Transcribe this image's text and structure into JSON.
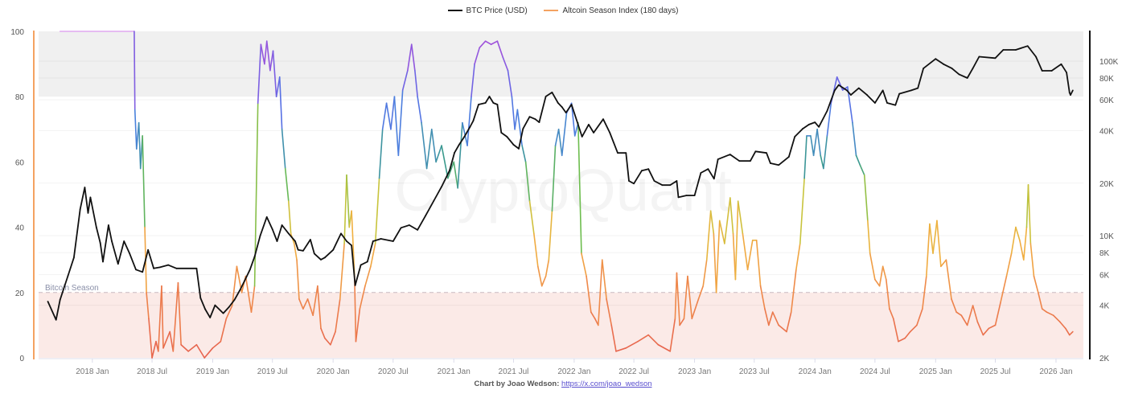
{
  "legend": {
    "btc_label": "BTC Price (USD)",
    "alt_label": "Altcoin Season Index (180 days)",
    "btc_color": "#111111",
    "alt_color": "#f4a261"
  },
  "footer": {
    "credit": "Chart by Joao Wedson:",
    "link": "https://x.com/joao_wedson"
  },
  "watermark": "CryptoQuant",
  "chart_data": {
    "type": "line",
    "xlim": [
      "2017-07-22",
      "2026-03-25"
    ],
    "x_ticks": [
      "2018 Jan",
      "2018 Jul",
      "2019 Jan",
      "2019 Jul",
      "2020 Jan",
      "2020 Jul",
      "2021 Jan",
      "2021 Jul",
      "2022 Jan",
      "2022 Jul",
      "2023 Jan",
      "2023 Jul",
      "2024 Jan",
      "2024 Jul",
      "2025 Jan",
      "2025 Jul",
      "2026 Jan"
    ],
    "x_tick_dates": [
      "2018-01-01",
      "2018-07-01",
      "2019-01-01",
      "2019-07-01",
      "2020-01-01",
      "2020-07-01",
      "2021-01-01",
      "2021-07-01",
      "2022-01-01",
      "2022-07-01",
      "2023-01-01",
      "2023-07-01",
      "2024-01-01",
      "2024-07-01",
      "2025-01-01",
      "2025-07-01",
      "2026-01-01"
    ],
    "y_left": {
      "ylim": [
        0,
        100
      ],
      "ticks": [
        0,
        20,
        40,
        60,
        80,
        100
      ],
      "color": "#f4a261"
    },
    "y_right": {
      "scale": "log",
      "ylim": [
        2000,
        148000
      ],
      "ticks": [
        2000,
        4000,
        6000,
        8000,
        10000,
        20000,
        40000,
        60000,
        80000,
        100000
      ],
      "tick_labels": [
        "2K",
        "4K",
        "6K",
        "8K",
        "10K",
        "20K",
        "40K",
        "60K",
        "80K",
        "100K"
      ],
      "color": "#111111"
    },
    "grid": true,
    "legend_position": "top",
    "bands": [
      {
        "from": 80,
        "to": 100,
        "color": "#f0f0f0"
      },
      {
        "from": 0,
        "to": 20,
        "color": "#fbeae7",
        "label": "Bitcoin Season",
        "line_at": 20
      }
    ],
    "alt_color_scale": [
      {
        "v": 0,
        "color": "#e6604f"
      },
      {
        "v": 20,
        "color": "#ef8a4a"
      },
      {
        "v": 35,
        "color": "#f0b040"
      },
      {
        "v": 45,
        "color": "#c8c43c"
      },
      {
        "v": 52,
        "color": "#6dbd4e"
      },
      {
        "v": 60,
        "color": "#3a9a8c"
      },
      {
        "v": 70,
        "color": "#4a82dc"
      },
      {
        "v": 80,
        "color": "#5a6ce6"
      },
      {
        "v": 90,
        "color": "#8a5ae0"
      },
      {
        "v": 99,
        "color": "#a84ed8"
      },
      {
        "v": 100,
        "color": "#e0a8f0"
      }
    ],
    "series": [
      {
        "name": "Altcoin Season Index (180 days)",
        "axis": "left",
        "dates": [
          "2017-09-25",
          "2018-05-08",
          "2018-05-10",
          "2018-05-15",
          "2018-05-22",
          "2018-05-27",
          "2018-06-02",
          "2018-06-09",
          "2018-06-14",
          "2018-06-21",
          "2018-07-01",
          "2018-07-13",
          "2018-07-20",
          "2018-07-30",
          "2018-08-04",
          "2018-08-24",
          "2018-09-03",
          "2018-09-18",
          "2018-09-27",
          "2018-10-19",
          "2018-11-13",
          "2018-12-07",
          "2019-01-01",
          "2019-01-25",
          "2019-02-11",
          "2019-03-01",
          "2019-03-15",
          "2019-03-30",
          "2019-04-11",
          "2019-04-28",
          "2019-05-08",
          "2019-05-18",
          "2019-05-27",
          "2019-06-07",
          "2019-06-14",
          "2019-06-24",
          "2019-07-03",
          "2019-07-13",
          "2019-07-23",
          "2019-07-30",
          "2019-08-09",
          "2019-08-19",
          "2019-08-26",
          "2019-09-05",
          "2019-09-13",
          "2019-09-20",
          "2019-10-02",
          "2019-10-16",
          "2019-11-01",
          "2019-11-15",
          "2019-11-25",
          "2019-12-07",
          "2019-12-24",
          "2020-01-08",
          "2020-01-22",
          "2020-02-04",
          "2020-02-11",
          "2020-02-19",
          "2020-02-26",
          "2020-03-06",
          "2020-03-10",
          "2020-03-22",
          "2020-04-07",
          "2020-04-24",
          "2020-05-08",
          "2020-05-20",
          "2020-05-30",
          "2020-06-11",
          "2020-06-24",
          "2020-07-05",
          "2020-07-17",
          "2020-07-30",
          "2020-08-14",
          "2020-08-26",
          "2020-09-05",
          "2020-09-13",
          "2020-09-25",
          "2020-10-11",
          "2020-10-26",
          "2020-11-08",
          "2020-11-25",
          "2020-12-14",
          "2021-01-01",
          "2021-01-13",
          "2021-01-27",
          "2021-02-11",
          "2021-02-23",
          "2021-03-05",
          "2021-03-20",
          "2021-04-07",
          "2021-04-24",
          "2021-05-13",
          "2021-05-30",
          "2021-06-14",
          "2021-06-26",
          "2021-07-05",
          "2021-07-13",
          "2021-07-27",
          "2021-08-07",
          "2021-08-19",
          "2021-09-01",
          "2021-09-13",
          "2021-09-25",
          "2021-10-07",
          "2021-10-16",
          "2021-10-26",
          "2021-11-05",
          "2021-11-15",
          "2021-11-25",
          "2021-12-09",
          "2021-12-24",
          "2022-01-03",
          "2022-01-13",
          "2022-01-23",
          "2022-02-07",
          "2022-02-21",
          "2022-03-05",
          "2022-03-15",
          "2022-03-27",
          "2022-04-09",
          "2022-04-24",
          "2022-05-08",
          "2022-06-07",
          "2022-07-13",
          "2022-08-14",
          "2022-09-13",
          "2022-10-19",
          "2022-11-03",
          "2022-11-08",
          "2022-11-17",
          "2022-11-30",
          "2022-12-11",
          "2022-12-24",
          "2023-01-13",
          "2023-01-27",
          "2023-02-07",
          "2023-02-19",
          "2023-02-28",
          "2023-03-08",
          "2023-03-18",
          "2023-04-02",
          "2023-04-19",
          "2023-04-28",
          "2023-05-05",
          "2023-05-13",
          "2023-05-27",
          "2023-06-11",
          "2023-06-26",
          "2023-07-08",
          "2023-07-20",
          "2023-08-02",
          "2023-08-14",
          "2023-08-26",
          "2023-09-13",
          "2023-10-07",
          "2023-10-21",
          "2023-11-05",
          "2023-11-17",
          "2023-11-30",
          "2023-12-07",
          "2023-12-19",
          "2023-12-28",
          "2024-01-08",
          "2024-01-18",
          "2024-01-27",
          "2024-02-07",
          "2024-02-19",
          "2024-03-08",
          "2024-03-25",
          "2024-04-09",
          "2024-04-24",
          "2024-05-05",
          "2024-05-17",
          "2024-05-30",
          "2024-06-09",
          "2024-06-16",
          "2024-07-01",
          "2024-07-15",
          "2024-07-25",
          "2024-08-04",
          "2024-08-14",
          "2024-08-26",
          "2024-09-10",
          "2024-09-30",
          "2024-10-16",
          "2024-11-05",
          "2024-11-22",
          "2024-12-04",
          "2024-12-14",
          "2024-12-24",
          "2025-01-05",
          "2025-01-17",
          "2025-02-02",
          "2025-02-18",
          "2025-03-05",
          "2025-03-20",
          "2025-04-07",
          "2025-04-24",
          "2025-05-08",
          "2025-05-25",
          "2025-06-11",
          "2025-07-01",
          "2025-07-17",
          "2025-08-04",
          "2025-08-19",
          "2025-09-01",
          "2025-09-13",
          "2025-09-25",
          "2025-10-04",
          "2025-10-09",
          "2025-10-16",
          "2025-10-26",
          "2025-11-08",
          "2025-11-20",
          "2025-12-04",
          "2025-12-24",
          "2026-01-13",
          "2026-01-30",
          "2026-02-11",
          "2026-02-21"
        ],
        "values": [
          100,
          100,
          76,
          64,
          72,
          58,
          68,
          40,
          20,
          12,
          0,
          5,
          2,
          22,
          3,
          8,
          2,
          23,
          4,
          2,
          4,
          0,
          3,
          5,
          12,
          16,
          28,
          20,
          25,
          14,
          22,
          78,
          96,
          90,
          97,
          88,
          94,
          80,
          86,
          70,
          58,
          48,
          38,
          35,
          30,
          18,
          15,
          18,
          13,
          22,
          9,
          6,
          4,
          8,
          18,
          35,
          56,
          40,
          45,
          25,
          5,
          15,
          22,
          28,
          35,
          55,
          70,
          78,
          70,
          80,
          62,
          82,
          88,
          96,
          88,
          80,
          72,
          58,
          70,
          60,
          65,
          55,
          60,
          52,
          72,
          65,
          80,
          90,
          95,
          97,
          96,
          97,
          92,
          88,
          80,
          70,
          76,
          65,
          60,
          48,
          38,
          28,
          22,
          25,
          30,
          45,
          65,
          70,
          62,
          75,
          78,
          68,
          72,
          32,
          25,
          14,
          12,
          10,
          30,
          18,
          10,
          2,
          3,
          5,
          7,
          4,
          2,
          12,
          26,
          10,
          12,
          25,
          12,
          18,
          22,
          30,
          45,
          38,
          20,
          42,
          35,
          49,
          38,
          24,
          48,
          38,
          27,
          36,
          36,
          22,
          15,
          10,
          14,
          10,
          8,
          14,
          27,
          35,
          55,
          68,
          68,
          62,
          70,
          62,
          58,
          68,
          78,
          86,
          82,
          83,
          72,
          62,
          59,
          56,
          42,
          32,
          24,
          22,
          28,
          24,
          15,
          12,
          5,
          6,
          8,
          10,
          15,
          25,
          41,
          32,
          42,
          28,
          30,
          18,
          14,
          13,
          10,
          16,
          11,
          7,
          9,
          10,
          17,
          25,
          32,
          40,
          36,
          30,
          40,
          53,
          35,
          25,
          20,
          15,
          14,
          13,
          11,
          9,
          7,
          8
        ]
      },
      {
        "name": "BTC Price (USD)",
        "axis": "right",
        "dates": [
          "2017-08-19",
          "2017-09-13",
          "2017-09-25",
          "2017-10-19",
          "2017-11-06",
          "2017-11-25",
          "2017-12-09",
          "2017-12-19",
          "2017-12-26",
          "2018-01-13",
          "2018-01-25",
          "2018-02-02",
          "2018-02-19",
          "2018-03-01",
          "2018-03-20",
          "2018-04-07",
          "2018-04-24",
          "2018-05-13",
          "2018-06-02",
          "2018-06-19",
          "2018-07-06",
          "2018-07-25",
          "2018-08-19",
          "2018-09-13",
          "2018-11-13",
          "2018-11-25",
          "2018-12-09",
          "2018-12-24",
          "2019-01-08",
          "2019-02-02",
          "2019-02-19",
          "2019-03-08",
          "2019-03-25",
          "2019-04-07",
          "2019-04-24",
          "2019-05-08",
          "2019-05-25",
          "2019-06-14",
          "2019-07-01",
          "2019-07-15",
          "2019-07-30",
          "2019-08-19",
          "2019-09-08",
          "2019-09-17",
          "2019-10-02",
          "2019-10-24",
          "2019-11-05",
          "2019-11-25",
          "2019-12-07",
          "2020-01-01",
          "2020-01-25",
          "2020-02-11",
          "2020-02-26",
          "2020-03-08",
          "2020-03-25",
          "2020-04-14",
          "2020-05-01",
          "2020-05-25",
          "2020-07-01",
          "2020-07-25",
          "2020-08-19",
          "2020-09-13",
          "2020-10-07",
          "2020-11-01",
          "2020-11-25",
          "2020-12-19",
          "2021-01-03",
          "2021-01-17",
          "2021-02-02",
          "2021-02-19",
          "2021-03-01",
          "2021-03-17",
          "2021-04-07",
          "2021-04-19",
          "2021-05-01",
          "2021-05-13",
          "2021-05-25",
          "2021-06-11",
          "2021-07-01",
          "2021-07-17",
          "2021-07-30",
          "2021-08-19",
          "2021-09-05",
          "2021-09-17",
          "2021-10-07",
          "2021-10-26",
          "2021-11-13",
          "2021-11-25",
          "2021-12-07",
          "2021-12-24",
          "2022-01-25",
          "2022-02-14",
          "2022-03-01",
          "2022-03-30",
          "2022-04-19",
          "2022-05-13",
          "2022-06-07",
          "2022-06-16",
          "2022-07-01",
          "2022-07-25",
          "2022-08-14",
          "2022-09-01",
          "2022-09-25",
          "2022-10-19",
          "2022-11-08",
          "2022-11-13",
          "2022-12-07",
          "2023-01-01",
          "2023-01-20",
          "2023-02-11",
          "2023-03-01",
          "2023-03-13",
          "2023-04-19",
          "2023-05-17",
          "2023-06-19",
          "2023-07-05",
          "2023-08-07",
          "2023-08-19",
          "2023-09-13",
          "2023-10-14",
          "2023-11-01",
          "2023-11-25",
          "2023-12-14",
          "2024-01-01",
          "2024-01-13",
          "2024-02-07",
          "2024-03-01",
          "2024-03-13",
          "2024-04-07",
          "2024-04-19",
          "2024-05-13",
          "2024-06-07",
          "2024-07-01",
          "2024-07-25",
          "2024-08-07",
          "2024-09-01",
          "2024-09-13",
          "2024-10-19",
          "2024-11-08",
          "2024-11-25",
          "2025-01-01",
          "2025-01-25",
          "2025-02-19",
          "2025-03-13",
          "2025-04-07",
          "2025-04-24",
          "2025-05-13",
          "2025-07-01",
          "2025-07-25",
          "2025-09-01",
          "2025-10-07",
          "2025-11-01",
          "2025-11-20",
          "2025-12-19",
          "2026-01-17",
          "2026-02-02",
          "2026-02-11",
          "2026-02-14",
          "2026-02-21"
        ],
        "values": [
          4200,
          3300,
          4300,
          5900,
          7500,
          14200,
          18900,
          13500,
          16600,
          11200,
          9100,
          7100,
          11500,
          9300,
          6900,
          9300,
          7900,
          6400,
          6200,
          8300,
          6500,
          6600,
          6800,
          6500,
          6500,
          4400,
          3800,
          3400,
          4000,
          3600,
          3900,
          4300,
          4900,
          5500,
          6400,
          7600,
          10000,
          12800,
          10900,
          9300,
          11500,
          10300,
          9300,
          8300,
          8200,
          9500,
          7900,
          7300,
          7500,
          8300,
          10300,
          9300,
          8800,
          5200,
          6800,
          7100,
          9300,
          9600,
          9300,
          11100,
          11500,
          10800,
          13000,
          15800,
          19100,
          23600,
          29900,
          33200,
          36900,
          41900,
          45500,
          56400,
          57600,
          62700,
          57600,
          56400,
          38900,
          36900,
          33200,
          31500,
          41000,
          48000,
          46500,
          44600,
          62700,
          66200,
          57600,
          54600,
          50700,
          56400,
          36900,
          43300,
          38900,
          46500,
          38900,
          29800,
          29800,
          20600,
          19900,
          23600,
          24100,
          20600,
          19500,
          19500,
          20600,
          16600,
          17000,
          17000,
          22900,
          24100,
          21200,
          27400,
          29200,
          26800,
          26800,
          30400,
          29800,
          26000,
          25400,
          28300,
          36900,
          41000,
          43300,
          44600,
          42000,
          51800,
          68000,
          73000,
          68000,
          64000,
          70000,
          64000,
          57600,
          68000,
          57600,
          56000,
          65000,
          68000,
          70000,
          90800,
          103000,
          96000,
          91000,
          84000,
          80000,
          91000,
          106000,
          104000,
          116000,
          116000,
          122000,
          106000,
          88000,
          88000,
          96000,
          86000,
          66000,
          64000,
          68000
        ]
      }
    ]
  }
}
